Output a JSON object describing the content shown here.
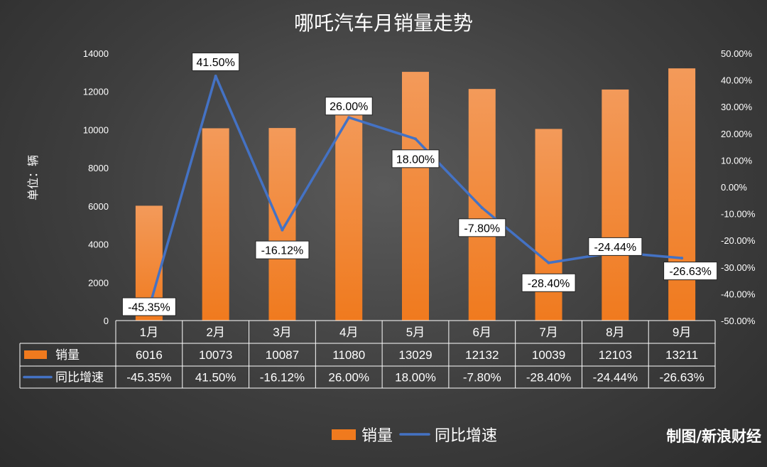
{
  "chart_data": {
    "type": "bar+line",
    "title": "哪吒汽车月销量走势",
    "ylabel": "单位：辆",
    "categories": [
      "1月",
      "2月",
      "3月",
      "4月",
      "5月",
      "6月",
      "7月",
      "8月",
      "9月"
    ],
    "series": [
      {
        "name": "销量",
        "type": "bar",
        "axis": "left",
        "color": "#f07a1e",
        "values": [
          6016,
          10073,
          10087,
          11080,
          13029,
          12132,
          10039,
          12103,
          13211
        ],
        "labels": [
          "6016",
          "10073",
          "10087",
          "11080",
          "13029",
          "12132",
          "10039",
          "12103",
          "13211"
        ]
      },
      {
        "name": "同比增速",
        "type": "line",
        "axis": "right",
        "color": "#4472c4",
        "values": [
          -45.35,
          41.5,
          -16.12,
          26.0,
          18.0,
          -7.8,
          -28.4,
          -24.44,
          -26.63
        ],
        "labels": [
          "-45.35%",
          "41.50%",
          "-16.12%",
          "26.00%",
          "18.00%",
          "-7.80%",
          "-28.40%",
          "-24.44%",
          "-26.63%"
        ]
      }
    ],
    "y_left": {
      "min": 0,
      "max": 14000,
      "ticks": [
        "0",
        "2000",
        "4000",
        "6000",
        "8000",
        "10000",
        "12000",
        "14000"
      ]
    },
    "y_right": {
      "min": -50,
      "max": 50,
      "ticks": [
        "-50.00%",
        "-40.00%",
        "-30.00%",
        "-20.00%",
        "-10.00%",
        "0.00%",
        "10.00%",
        "20.00%",
        "30.00%",
        "40.00%",
        "50.00%"
      ]
    },
    "data_table": true,
    "legend_position": "bottom"
  },
  "credit": "制图/新浪财经"
}
